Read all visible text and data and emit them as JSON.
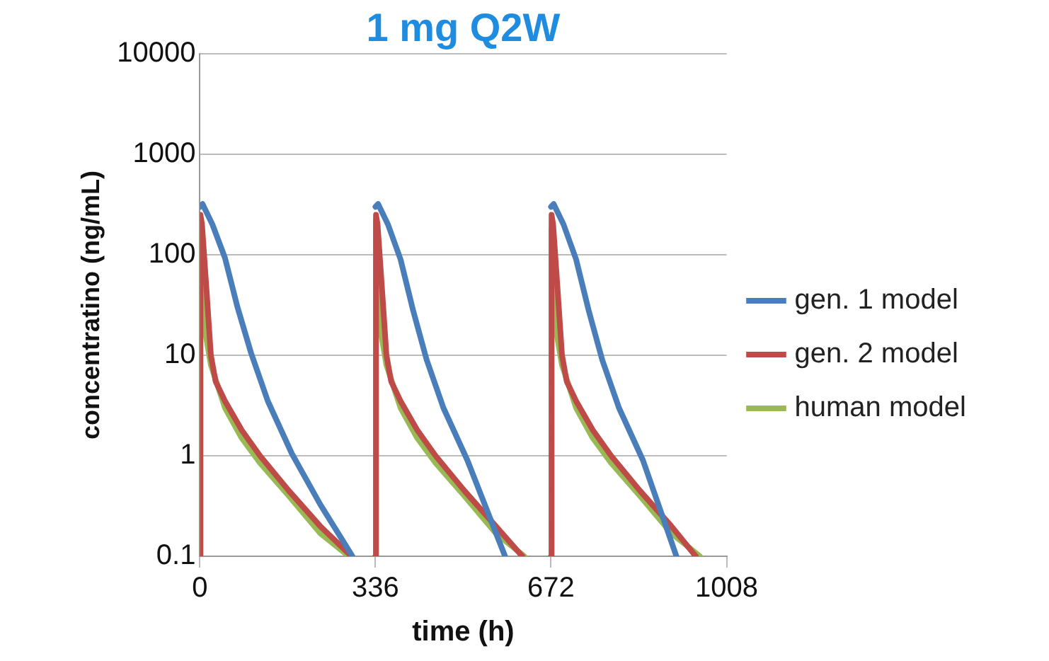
{
  "chart_data": {
    "type": "line",
    "title": "1 mg Q2W",
    "xlabel": "time (h)",
    "ylabel": "concentratino (ng/mL)",
    "log": "y",
    "xlim": [
      0,
      1008
    ],
    "xticks": [
      0,
      336,
      672,
      1008
    ],
    "ylim": [
      0.1,
      10000
    ],
    "yticks": [
      0.1,
      1,
      10,
      100,
      1000,
      10000
    ],
    "grid": "y",
    "legend": "right",
    "marker": "none",
    "line_style": "solid",
    "series": [
      {
        "name": "gen. 1 model",
        "color": "#4a7ebb",
        "x": [
          0,
          5,
          24,
          48,
          72,
          98,
          130,
          176,
          230,
          292,
          300,
          336,
          341,
          360,
          384,
          408,
          434,
          466,
          512,
          584,
          600,
          672,
          677,
          696,
          720,
          744,
          770,
          802,
          848,
          912
        ],
        "values": [
          300,
          320,
          200,
          93,
          30,
          10.5,
          3.5,
          1.05,
          0.33,
          0.1,
          null,
          300,
          320,
          200,
          90,
          28,
          9,
          3,
          0.9,
          0.1,
          null,
          300,
          320,
          200,
          90,
          28,
          9,
          3,
          0.9,
          0.1
        ]
      },
      {
        "name": "gen. 2 model",
        "color": "#be4b48",
        "x": [
          0,
          1,
          4,
          12,
          21,
          30,
          48,
          80,
          115,
          170,
          230,
          290,
          300,
          336,
          337,
          340,
          348,
          357,
          366,
          384,
          416,
          451,
          506,
          566,
          617,
          640,
          672,
          673,
          676,
          684,
          693,
          702,
          720,
          752,
          787,
          842,
          902,
          949
        ],
        "values": [
          0.1,
          250,
          200,
          50,
          10,
          5.5,
          3.5,
          1.8,
          1,
          0.45,
          0.2,
          0.1,
          null,
          0.1,
          250,
          200,
          50,
          10,
          5.5,
          3.5,
          1.8,
          1,
          0.45,
          0.2,
          0.1,
          null,
          0.1,
          250,
          200,
          50,
          10,
          5.5,
          3.5,
          1.8,
          1,
          0.45,
          0.2,
          0.1
        ]
      },
      {
        "name": "human model",
        "color": "#98b954",
        "x": [
          0,
          1,
          8,
          21,
          48,
          80,
          115,
          170,
          230,
          285,
          300,
          336,
          337,
          344,
          357,
          384,
          416,
          451,
          506,
          566,
          621,
          640,
          672,
          673,
          680,
          693,
          720,
          752,
          787,
          842,
          902,
          957
        ],
        "values": [
          0.1,
          150,
          20,
          8,
          3,
          1.5,
          0.85,
          0.4,
          0.17,
          0.1,
          null,
          0.1,
          220,
          20,
          8,
          3,
          1.5,
          0.85,
          0.4,
          0.17,
          0.1,
          null,
          0.1,
          180,
          20,
          8,
          3,
          1.5,
          0.85,
          0.4,
          0.17,
          0.1
        ]
      }
    ]
  }
}
